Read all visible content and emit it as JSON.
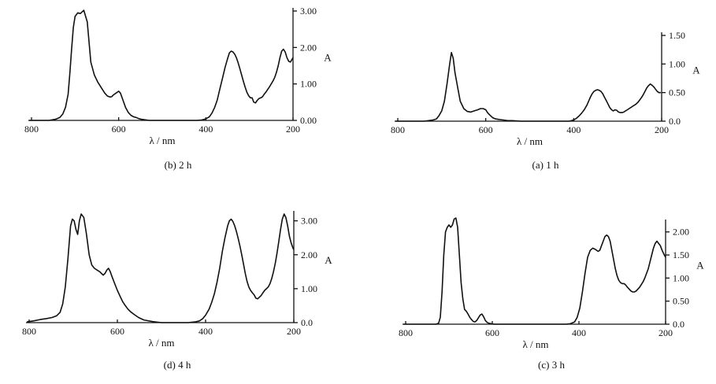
{
  "chart_data": [
    {
      "type": "line",
      "caption": "(b) 2 h",
      "xlabel": "λ / nm",
      "ylabel": "A",
      "xlim": [
        800,
        200
      ],
      "ylim": [
        0,
        3.0
      ],
      "xticks": [
        "800",
        "600",
        "400",
        "200"
      ],
      "yticks": [
        "0.00",
        "1.00",
        "2.00",
        "3.00"
      ],
      "series": [
        {
          "x": [
            805,
            780,
            760,
            745,
            735,
            728,
            722,
            716,
            712,
            708,
            704,
            700,
            694,
            688,
            680,
            672,
            664,
            656,
            648,
            640,
            632,
            626,
            620,
            616,
            612,
            606,
            600,
            596,
            590,
            584,
            578,
            572,
            566,
            560,
            554,
            548,
            542,
            536,
            530,
            520,
            500,
            480,
            460,
            440,
            430,
            420,
            410,
            400,
            392,
            386,
            380,
            374,
            368,
            362,
            356,
            350,
            346,
            342,
            338,
            334,
            330,
            326,
            322,
            318,
            314,
            310,
            306,
            302,
            298,
            294,
            290,
            286,
            282,
            278,
            274,
            270,
            266,
            262,
            258,
            254,
            250,
            246,
            242,
            238,
            234,
            230,
            226,
            222,
            218,
            214,
            210,
            206,
            202,
            200
          ],
          "y": [
            0,
            0,
            0,
            0.03,
            0.08,
            0.18,
            0.36,
            0.72,
            1.3,
            1.95,
            2.55,
            2.85,
            2.95,
            2.93,
            3.02,
            2.7,
            1.6,
            1.25,
            1.05,
            0.9,
            0.75,
            0.67,
            0.64,
            0.65,
            0.7,
            0.75,
            0.8,
            0.75,
            0.55,
            0.35,
            0.22,
            0.14,
            0.1,
            0.08,
            0.05,
            0.03,
            0.02,
            0.01,
            0,
            0,
            0,
            0,
            0,
            0,
            0,
            0,
            0.01,
            0.04,
            0.1,
            0.2,
            0.35,
            0.55,
            0.85,
            1.15,
            1.45,
            1.7,
            1.85,
            1.9,
            1.88,
            1.82,
            1.72,
            1.58,
            1.42,
            1.25,
            1.08,
            0.92,
            0.78,
            0.68,
            0.62,
            0.62,
            0.5,
            0.48,
            0.55,
            0.6,
            0.62,
            0.65,
            0.72,
            0.78,
            0.85,
            0.92,
            1.0,
            1.08,
            1.18,
            1.32,
            1.5,
            1.72,
            1.9,
            1.95,
            1.88,
            1.72,
            1.62,
            1.6,
            1.68,
            1.72
          ]
        }
      ]
    },
    {
      "type": "line",
      "caption": "(a) 1 h",
      "xlabel": "λ / nm",
      "ylabel": "A",
      "xlim": [
        800,
        200
      ],
      "ylim": [
        0,
        1.5
      ],
      "xticks": [
        "800",
        "600",
        "400",
        "200"
      ],
      "yticks": [
        "0.0",
        "0.50",
        "1.00",
        "1.50"
      ],
      "series": [
        {
          "x": [
            805,
            780,
            760,
            740,
            730,
            720,
            712,
            706,
            700,
            694,
            688,
            682,
            678,
            674,
            670,
            664,
            658,
            650,
            642,
            634,
            626,
            618,
            612,
            606,
            600,
            596,
            590,
            584,
            578,
            570,
            560,
            550,
            540,
            520,
            500,
            480,
            460,
            440,
            420,
            410,
            400,
            394,
            388,
            382,
            376,
            370,
            366,
            362,
            358,
            354,
            350,
            346,
            342,
            338,
            334,
            330,
            326,
            322,
            318,
            314,
            310,
            306,
            302,
            298,
            294,
            290,
            286,
            282,
            278,
            274,
            270,
            266,
            262,
            258,
            254,
            250,
            246,
            242,
            238,
            234,
            230,
            226,
            222,
            218,
            214,
            210,
            206,
            202
          ],
          "y": [
            0,
            0,
            0,
            0,
            0.01,
            0.02,
            0.04,
            0.1,
            0.18,
            0.35,
            0.65,
            1.0,
            1.2,
            1.1,
            0.85,
            0.6,
            0.35,
            0.22,
            0.17,
            0.16,
            0.18,
            0.2,
            0.22,
            0.22,
            0.2,
            0.15,
            0.1,
            0.06,
            0.04,
            0.03,
            0.02,
            0.01,
            0.01,
            0,
            0,
            0,
            0,
            0,
            0,
            0,
            0.02,
            0.05,
            0.09,
            0.14,
            0.2,
            0.28,
            0.35,
            0.42,
            0.48,
            0.52,
            0.54,
            0.55,
            0.54,
            0.52,
            0.48,
            0.42,
            0.36,
            0.3,
            0.24,
            0.2,
            0.18,
            0.2,
            0.19,
            0.16,
            0.15,
            0.15,
            0.16,
            0.18,
            0.2,
            0.22,
            0.24,
            0.26,
            0.28,
            0.3,
            0.33,
            0.37,
            0.41,
            0.46,
            0.52,
            0.58,
            0.62,
            0.65,
            0.63,
            0.6,
            0.56,
            0.52,
            0.5,
            0.5
          ]
        }
      ]
    },
    {
      "type": "line",
      "caption": "(d) 4 h",
      "xlabel": "λ / nm",
      "ylabel": "A",
      "xlim": [
        800,
        200
      ],
      "ylim": [
        0,
        3.2
      ],
      "xticks": [
        "800",
        "600",
        "400",
        "200"
      ],
      "yticks": [
        "0.0",
        "1.00",
        "2.00",
        "3.00"
      ],
      "series": [
        {
          "x": [
            805,
            790,
            775,
            760,
            748,
            738,
            730,
            724,
            718,
            712,
            706,
            702,
            698,
            694,
            690,
            686,
            682,
            676,
            670,
            664,
            658,
            652,
            646,
            640,
            636,
            632,
            628,
            624,
            620,
            616,
            612,
            606,
            600,
            594,
            588,
            582,
            576,
            570,
            562,
            552,
            540,
            520,
            500,
            480,
            460,
            440,
            424,
            414,
            406,
            400,
            392,
            386,
            380,
            374,
            368,
            362,
            356,
            350,
            346,
            342,
            338,
            334,
            330,
            326,
            322,
            318,
            314,
            310,
            306,
            302,
            298,
            294,
            290,
            286,
            282,
            278,
            274,
            270,
            266,
            262,
            258,
            254,
            250,
            246,
            242,
            238,
            234,
            230,
            226,
            222,
            218,
            214,
            210,
            206,
            202,
            200
          ],
          "y": [
            0.02,
            0.05,
            0.09,
            0.12,
            0.15,
            0.2,
            0.3,
            0.55,
            1.05,
            1.9,
            2.85,
            3.05,
            3.0,
            2.75,
            2.6,
            3.0,
            3.2,
            3.1,
            2.6,
            2.0,
            1.7,
            1.6,
            1.55,
            1.5,
            1.45,
            1.4,
            1.45,
            1.55,
            1.6,
            1.5,
            1.35,
            1.15,
            0.95,
            0.78,
            0.62,
            0.5,
            0.4,
            0.32,
            0.24,
            0.15,
            0.08,
            0.03,
            0,
            0,
            0,
            0,
            0.02,
            0.05,
            0.12,
            0.22,
            0.4,
            0.6,
            0.85,
            1.2,
            1.6,
            2.1,
            2.5,
            2.85,
            3.0,
            3.05,
            2.98,
            2.85,
            2.68,
            2.48,
            2.25,
            2.0,
            1.72,
            1.45,
            1.22,
            1.05,
            0.95,
            0.88,
            0.82,
            0.72,
            0.7,
            0.75,
            0.8,
            0.88,
            0.95,
            1.0,
            1.05,
            1.15,
            1.3,
            1.5,
            1.75,
            2.05,
            2.4,
            2.75,
            3.05,
            3.2,
            3.1,
            2.85,
            2.55,
            2.35,
            2.2,
            2.15
          ]
        }
      ]
    },
    {
      "type": "line",
      "caption": "(c) 3 h",
      "xlabel": "λ / nm",
      "ylabel": "A",
      "xlim": [
        800,
        200
      ],
      "ylim": [
        0,
        2.2
      ],
      "xticks": [
        "800",
        "600",
        "400",
        "200"
      ],
      "yticks": [
        "0.0",
        "0.50",
        "1.00",
        "1.50",
        "2.00"
      ],
      "series": [
        {
          "x": [
            805,
            780,
            760,
            740,
            730,
            724,
            720,
            716,
            712,
            708,
            704,
            700,
            696,
            692,
            688,
            684,
            680,
            676,
            672,
            668,
            664,
            660,
            656,
            652,
            648,
            644,
            640,
            636,
            632,
            628,
            624,
            620,
            616,
            612,
            608,
            602,
            596,
            590,
            580,
            560,
            540,
            520,
            500,
            480,
            460,
            440,
            430,
            420,
            410,
            404,
            398,
            392,
            386,
            380,
            374,
            368,
            362,
            356,
            352,
            348,
            344,
            340,
            336,
            332,
            328,
            324,
            320,
            316,
            312,
            308,
            304,
            300,
            296,
            292,
            288,
            284,
            280,
            276,
            272,
            268,
            264,
            260,
            256,
            252,
            248,
            244,
            240,
            236,
            232,
            228,
            224,
            220,
            216,
            212,
            208,
            204,
            200
          ],
          "y": [
            0,
            0,
            0,
            0,
            0,
            0.02,
            0.15,
            0.7,
            1.5,
            2.0,
            2.1,
            2.15,
            2.1,
            2.15,
            2.28,
            2.3,
            2.1,
            1.5,
            0.9,
            0.55,
            0.32,
            0.28,
            0.22,
            0.15,
            0.1,
            0.06,
            0.05,
            0.08,
            0.14,
            0.2,
            0.22,
            0.16,
            0.08,
            0.04,
            0.02,
            0.01,
            0,
            0,
            0,
            0,
            0,
            0,
            0,
            0,
            0,
            0,
            0,
            0.01,
            0.05,
            0.15,
            0.35,
            0.7,
            1.1,
            1.45,
            1.6,
            1.65,
            1.62,
            1.58,
            1.6,
            1.7,
            1.8,
            1.9,
            1.93,
            1.9,
            1.8,
            1.6,
            1.4,
            1.2,
            1.05,
            0.95,
            0.9,
            0.88,
            0.88,
            0.85,
            0.8,
            0.76,
            0.72,
            0.7,
            0.7,
            0.72,
            0.76,
            0.8,
            0.86,
            0.92,
            1.0,
            1.1,
            1.2,
            1.35,
            1.5,
            1.65,
            1.75,
            1.8,
            1.75,
            1.7,
            1.6,
            1.52,
            1.45
          ]
        }
      ]
    }
  ]
}
